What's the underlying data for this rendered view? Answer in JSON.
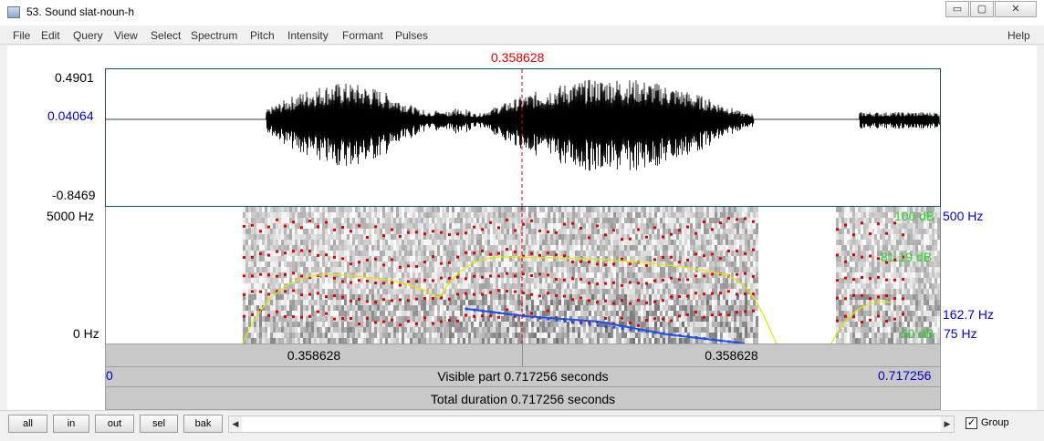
{
  "window": {
    "title": "53. Sound slat-noun-h",
    "min_glyph": "▭",
    "max_glyph": "▢",
    "close_glyph": "✕"
  },
  "menu": {
    "items": [
      "File",
      "Edit",
      "Query",
      "View",
      "Select",
      "Spectrum",
      "Pitch",
      "Intensity",
      "Formant",
      "Pulses"
    ],
    "help": "Help"
  },
  "waveform": {
    "cursor_time": "0.358628",
    "y_max": "0.4901",
    "y_cursor": "0.04064",
    "y_min": "-0.8469"
  },
  "spectrogram": {
    "freq_top": "5000 Hz",
    "freq_bottom": "0 Hz",
    "intensity_top": "100 dB",
    "intensity_value": "81.19 dB",
    "intensity_bottom": "50 dB",
    "pitch_top": "500 Hz",
    "pitch_value": "162.7 Hz",
    "pitch_bottom": "75 Hz"
  },
  "time_bars": {
    "left_segment": "0.358628",
    "right_segment": "0.358628",
    "visible_start": "0",
    "visible_label": "Visible part 0.717256 seconds",
    "visible_end": "0.717256",
    "total_label": "Total duration 0.717256 seconds"
  },
  "bottom": {
    "buttons": [
      "all",
      "in",
      "out",
      "sel",
      "bak"
    ],
    "group_label": "Group",
    "group_checked": "✓",
    "scroll_left": "◀",
    "scroll_right": "▶"
  },
  "colors": {
    "cursor": "#e00000",
    "formant": "#e00000",
    "intensity": "#e6e600",
    "pitch": "#1e50e6",
    "axis_blue": "#0000c8",
    "axis_green": "#2fd02f"
  }
}
